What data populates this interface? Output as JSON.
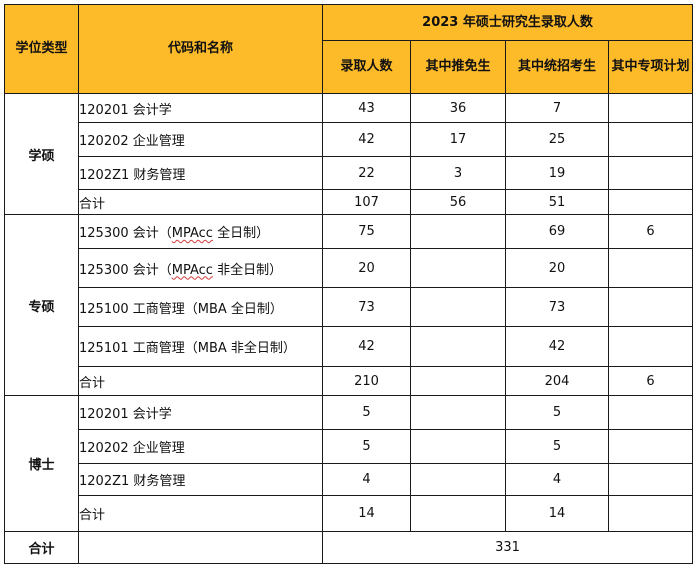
{
  "header": {
    "degree_type": "学位类型",
    "code_name": "代码和名称",
    "group_title": "2023 年硕士研究生录取人数",
    "columns": [
      "录取人数",
      "其中推免生",
      "其中统招考生",
      "其中专项计划"
    ]
  },
  "sections": [
    {
      "category": "学硕",
      "rows": [
        {
          "name": "120201 会计学",
          "admitted": "43",
          "recommended": "36",
          "exam": "7",
          "special": ""
        },
        {
          "name": "120202 企业管理",
          "admitted": "42",
          "recommended": "17",
          "exam": "25",
          "special": ""
        },
        {
          "name": "1202Z1 财务管理",
          "admitted": "22",
          "recommended": "3",
          "exam": "19",
          "special": ""
        },
        {
          "name": "合计",
          "admitted": "107",
          "recommended": "56",
          "exam": "51",
          "special": ""
        }
      ]
    },
    {
      "category": "专硕",
      "rows": [
        {
          "name": "125300 会计（MPAcc 全日制）",
          "admitted": "75",
          "recommended": "",
          "exam": "69",
          "special": "6"
        },
        {
          "name": "125300 会计（MPAcc 非全日制）",
          "admitted": "20",
          "recommended": "",
          "exam": "20",
          "special": ""
        },
        {
          "name": "125100 工商管理（MBA 全日制）",
          "admitted": "73",
          "recommended": "",
          "exam": "73",
          "special": ""
        },
        {
          "name": "125101 工商管理（MBA 非全日制）",
          "admitted": "42",
          "recommended": "",
          "exam": "42",
          "special": ""
        },
        {
          "name": "合计",
          "admitted": "210",
          "recommended": "",
          "exam": "204",
          "special": "6"
        }
      ]
    },
    {
      "category": "博士",
      "rows": [
        {
          "name": "120201 会计学",
          "admitted": "5",
          "recommended": "",
          "exam": "5",
          "special": ""
        },
        {
          "name": "120202 企业管理",
          "admitted": "5",
          "recommended": "",
          "exam": "5",
          "special": ""
        },
        {
          "name": "1202Z1 财务管理",
          "admitted": "4",
          "recommended": "",
          "exam": "4",
          "special": ""
        },
        {
          "name": "合计",
          "admitted": "14",
          "recommended": "",
          "exam": "14",
          "special": ""
        }
      ]
    }
  ],
  "grand_total": {
    "label": "合计",
    "value": "331"
  },
  "colors": {
    "header_bg": "#fdbb2a",
    "border": "#1a1a1a"
  }
}
